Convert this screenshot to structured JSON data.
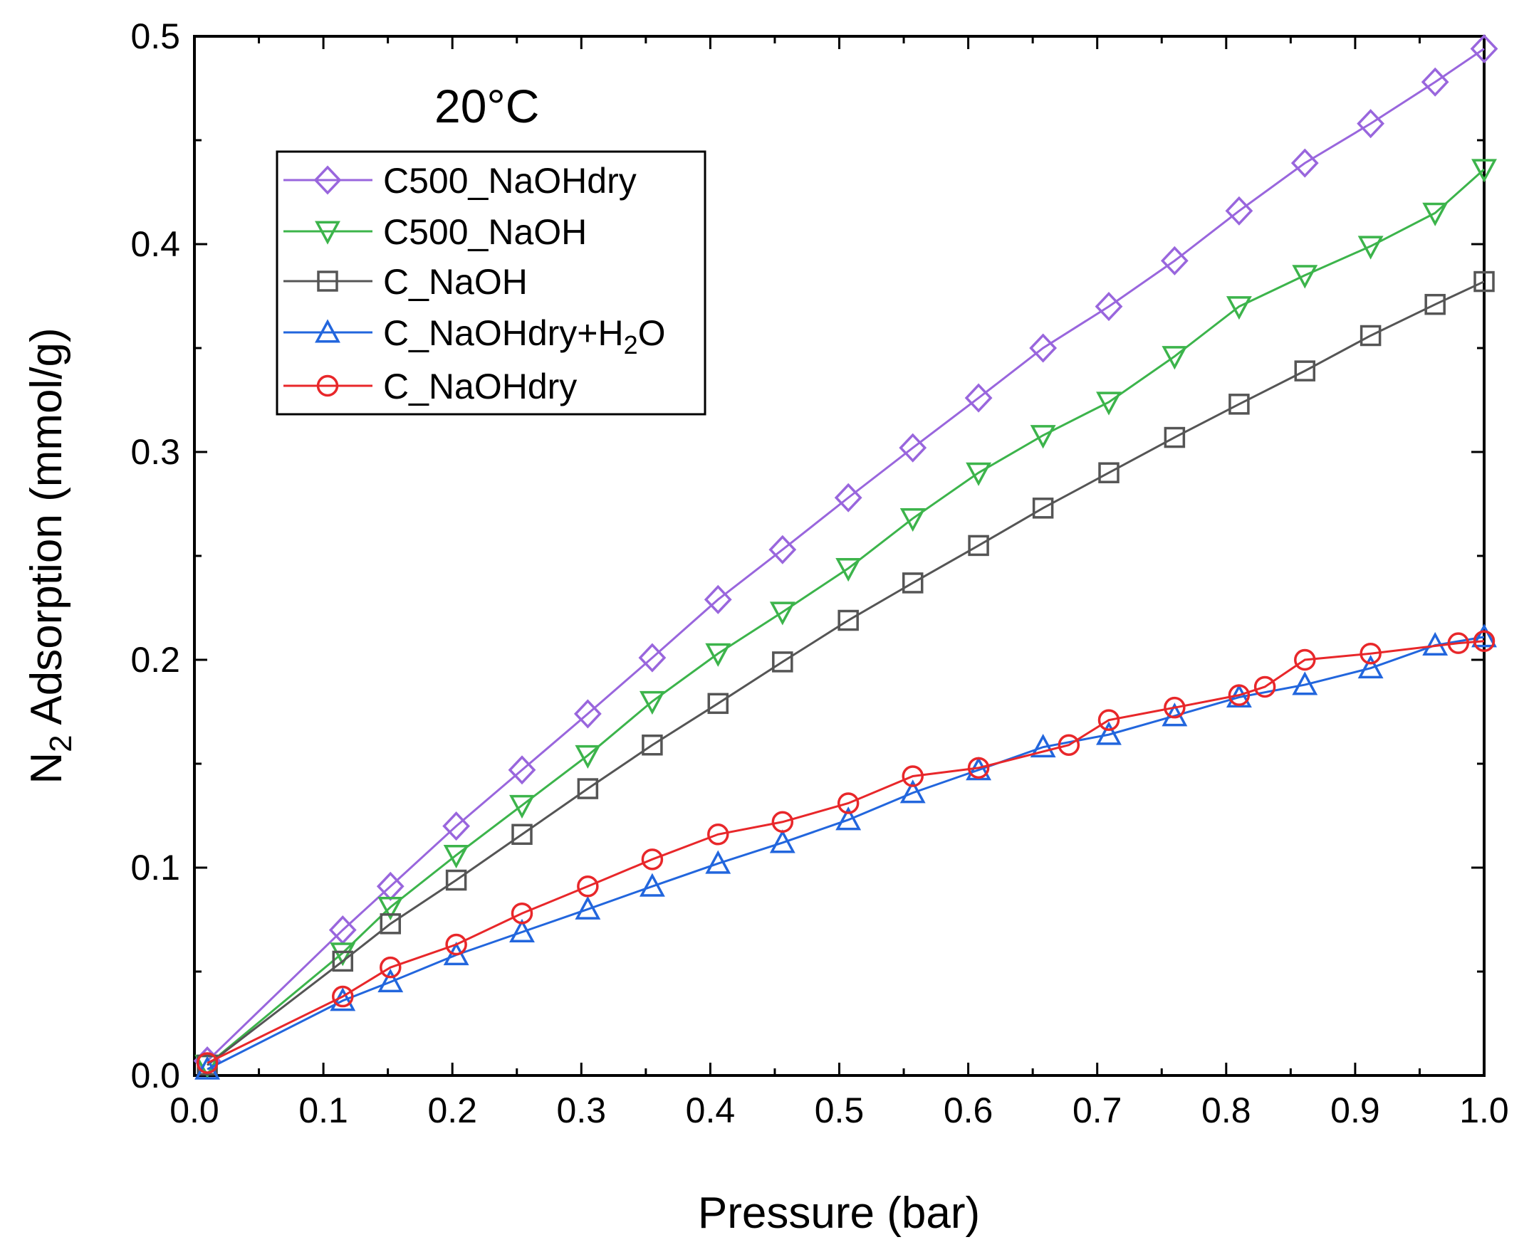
{
  "chart_data": {
    "type": "line",
    "annotation": "20°C",
    "xlabel": "Pressure (bar)",
    "ylabel": {
      "main": "N",
      "sub": "2",
      "rest": " Adsorption (mmol/g)"
    },
    "xlim": [
      0,
      1.0
    ],
    "ylim": [
      0,
      0.5
    ],
    "xticks": [
      "0.0",
      "0.1",
      "0.2",
      "0.3",
      "0.4",
      "0.5",
      "0.6",
      "0.7",
      "0.8",
      "0.9",
      "1.0"
    ],
    "yticks": [
      "0.0",
      "0.1",
      "0.2",
      "0.3",
      "0.4",
      "0.5"
    ],
    "grid": false,
    "legend_position": "upper-left",
    "series": [
      {
        "name": "C500_NaOHdry",
        "label_main": "C500_NaOHdry",
        "label_sub": "",
        "label_rest": "",
        "color": "#9966dd",
        "marker": "diamond",
        "x": [
          0.01,
          0.115,
          0.152,
          0.203,
          0.254,
          0.305,
          0.355,
          0.406,
          0.456,
          0.507,
          0.557,
          0.608,
          0.658,
          0.709,
          0.76,
          0.81,
          0.861,
          0.912,
          0.962,
          1.0
        ],
        "y": [
          0.007,
          0.07,
          0.091,
          0.12,
          0.147,
          0.174,
          0.201,
          0.229,
          0.253,
          0.278,
          0.302,
          0.326,
          0.35,
          0.37,
          0.392,
          0.416,
          0.439,
          0.458,
          0.478,
          0.494
        ]
      },
      {
        "name": "C500_NaOH",
        "label_main": "C500_NaOH",
        "label_sub": "",
        "label_rest": "",
        "color": "#3cb44b",
        "marker": "triangle-down",
        "x": [
          0.01,
          0.115,
          0.152,
          0.203,
          0.254,
          0.305,
          0.355,
          0.406,
          0.456,
          0.507,
          0.557,
          0.608,
          0.658,
          0.709,
          0.76,
          0.81,
          0.861,
          0.912,
          0.962,
          1.0
        ],
        "y": [
          0.005,
          0.059,
          0.081,
          0.106,
          0.13,
          0.154,
          0.18,
          0.203,
          0.223,
          0.244,
          0.268,
          0.29,
          0.308,
          0.324,
          0.346,
          0.37,
          0.385,
          0.399,
          0.415,
          0.436
        ]
      },
      {
        "name": "C_NaOH",
        "label_main": "C_NaOH",
        "label_sub": "",
        "label_rest": "",
        "color": "#555555",
        "marker": "square",
        "x": [
          0.01,
          0.115,
          0.152,
          0.203,
          0.254,
          0.305,
          0.355,
          0.406,
          0.456,
          0.507,
          0.557,
          0.608,
          0.658,
          0.709,
          0.76,
          0.81,
          0.861,
          0.912,
          0.962,
          1.0
        ],
        "y": [
          0.005,
          0.055,
          0.073,
          0.094,
          0.116,
          0.138,
          0.159,
          0.179,
          0.199,
          0.219,
          0.237,
          0.255,
          0.273,
          0.29,
          0.307,
          0.323,
          0.339,
          0.356,
          0.371,
          0.382
        ]
      },
      {
        "name": "C_NaOHdry+H2O",
        "label_main": "C_NaOHdry+H",
        "label_sub": "2",
        "label_rest": "O",
        "color": "#2266dd",
        "marker": "triangle-up",
        "x": [
          0.01,
          0.115,
          0.152,
          0.203,
          0.254,
          0.305,
          0.355,
          0.406,
          0.456,
          0.507,
          0.557,
          0.608,
          0.658,
          0.709,
          0.76,
          0.81,
          0.861,
          0.912,
          0.962,
          1.0
        ],
        "y": [
          0.003,
          0.036,
          0.045,
          0.058,
          0.069,
          0.08,
          0.091,
          0.102,
          0.112,
          0.123,
          0.136,
          0.147,
          0.158,
          0.164,
          0.173,
          0.182,
          0.188,
          0.196,
          0.207,
          0.211
        ]
      },
      {
        "name": "C_NaOHdry",
        "label_main": "C_NaOHdry",
        "label_sub": "",
        "label_rest": "",
        "color": "#e8272a",
        "marker": "circle",
        "x": [
          0.01,
          0.115,
          0.152,
          0.203,
          0.254,
          0.305,
          0.355,
          0.406,
          0.456,
          0.507,
          0.557,
          0.608,
          0.678,
          0.709,
          0.76,
          0.81,
          0.83,
          0.861,
          0.912,
          0.98,
          1.0
        ],
        "y": [
          0.006,
          0.038,
          0.052,
          0.063,
          0.078,
          0.091,
          0.104,
          0.116,
          0.122,
          0.131,
          0.144,
          0.148,
          0.159,
          0.171,
          0.177,
          0.183,
          0.187,
          0.2,
          0.203,
          0.208,
          0.209
        ]
      }
    ]
  }
}
